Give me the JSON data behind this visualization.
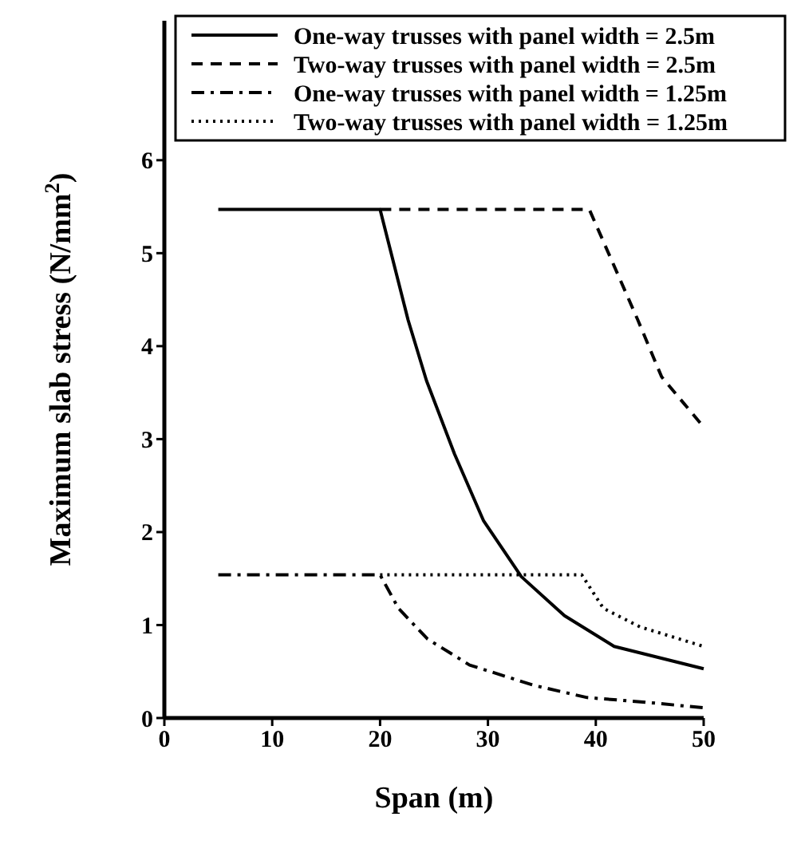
{
  "chart_data": {
    "type": "line",
    "xlabel": "Span (m)",
    "ylabel": "Maximum slab stress (N/mm$^{2}$)",
    "xlim": [
      0,
      50
    ],
    "ylim": [
      0,
      7.5
    ],
    "xticks": [
      0,
      10,
      20,
      30,
      40,
      50
    ],
    "yticks": [
      0,
      1,
      2,
      3,
      4,
      5,
      6
    ],
    "legend": "top right",
    "grid": false,
    "marker": "none",
    "series": [
      {
        "name": "One-way trusses with panel width = 2.5m",
        "color": "#000000",
        "line_style": "solid",
        "x": [
          5,
          20,
          22.6,
          24.3,
          26.9,
          29.6,
          33.1,
          37.1,
          41.7,
          50
        ],
        "values": [
          5.47,
          5.47,
          4.28,
          3.63,
          2.84,
          2.12,
          1.52,
          1.1,
          0.77,
          0.53
        ]
      },
      {
        "name": "Two-way trusses with panel width = 2.5m",
        "color": "#000000",
        "line_style": "dashed",
        "x": [
          20,
          39.4,
          43.9,
          46.1,
          50
        ],
        "values": [
          5.47,
          5.47,
          4.28,
          3.67,
          3.13
        ]
      },
      {
        "name": "One-way trusses with panel width = 1.25m",
        "color": "#000000",
        "line_style": "dashdot",
        "x": [
          5,
          20,
          21.7,
          24.4,
          28.3,
          34.3,
          39.2,
          44.6,
          50
        ],
        "values": [
          1.54,
          1.54,
          1.18,
          0.85,
          0.57,
          0.35,
          0.22,
          0.17,
          0.11
        ]
      },
      {
        "name": "Two-way trusses with panel width = 1.25m",
        "color": "#000000",
        "line_style": "dotted",
        "x": [
          20,
          38.7,
          40.7,
          44.1,
          50
        ],
        "values": [
          1.54,
          1.54,
          1.18,
          0.98,
          0.77
        ]
      }
    ]
  }
}
